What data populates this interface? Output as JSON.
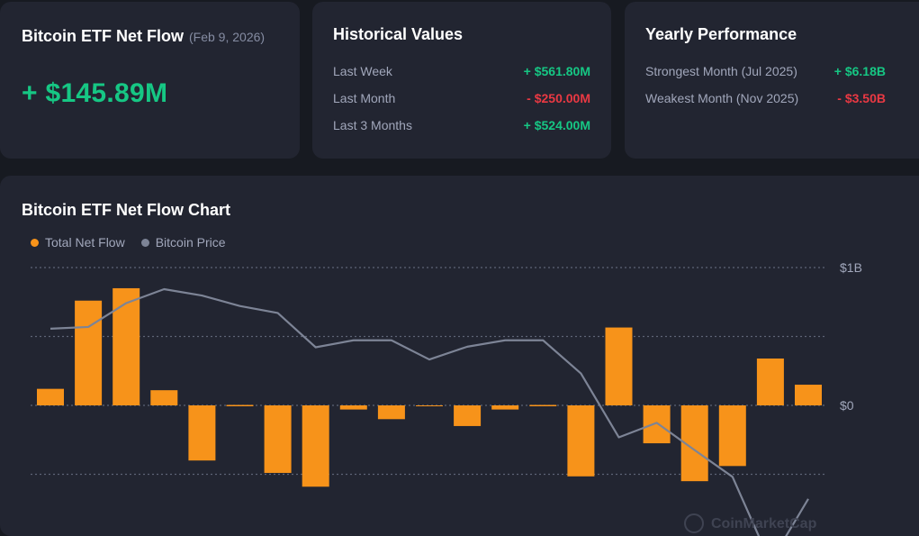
{
  "netflow_card": {
    "title": "Bitcoin ETF Net Flow",
    "date": "(Feb 9, 2026)",
    "value": "+ $145.89M"
  },
  "historical": {
    "title": "Historical Values",
    "rows": [
      {
        "label": "Last Week",
        "value": "+ $561.80M"
      },
      {
        "label": "Last Month",
        "value": "- $250.00M"
      },
      {
        "label": "Last 3 Months",
        "value": "+ $524.00M"
      }
    ]
  },
  "yearly": {
    "title": "Yearly Performance",
    "rows": [
      {
        "label": "Strongest Month (Jul 2025)",
        "value": "+ $6.18B"
      },
      {
        "label": "Weakest Month (Nov 2025)",
        "value": "- $3.50B"
      }
    ]
  },
  "colors": {
    "positive": "#16c784",
    "negative": "#ea3943",
    "bar": "#f7931a",
    "price_line": "#7d8496",
    "card": "#222531",
    "background": "#171a21"
  },
  "chart_data": {
    "type": "bar",
    "title": "Bitcoin ETF Net Flow Chart",
    "legend": [
      "Total Net Flow",
      "Bitcoin Price"
    ],
    "legend_placement": "top-left",
    "y_ticks": [
      {
        "value": 1000,
        "label": "$1B"
      },
      {
        "value": 0,
        "label": "$0"
      }
    ],
    "ylim": [
      -1300,
      1000
    ],
    "grid": true,
    "watermark": "CoinMarketCap",
    "series": [
      {
        "name": "Total Net Flow",
        "type": "bar",
        "values": [
          120,
          760,
          850,
          110,
          -400,
          0,
          -490,
          -590,
          -30,
          -100,
          -5,
          -150,
          -30,
          0,
          -515,
          565,
          -275,
          -550,
          -440,
          340,
          150
        ]
      },
      {
        "name": "Bitcoin Price",
        "type": "line",
        "values": [
          0.66,
          0.675,
          0.88,
          1.0,
          0.945,
          0.855,
          0.795,
          0.5,
          0.56,
          0.56,
          0.395,
          0.505,
          0.56,
          0.56,
          0.275,
          -0.275,
          -0.15,
          -0.385,
          -0.615,
          -1.35,
          -0.805
        ]
      }
    ]
  }
}
